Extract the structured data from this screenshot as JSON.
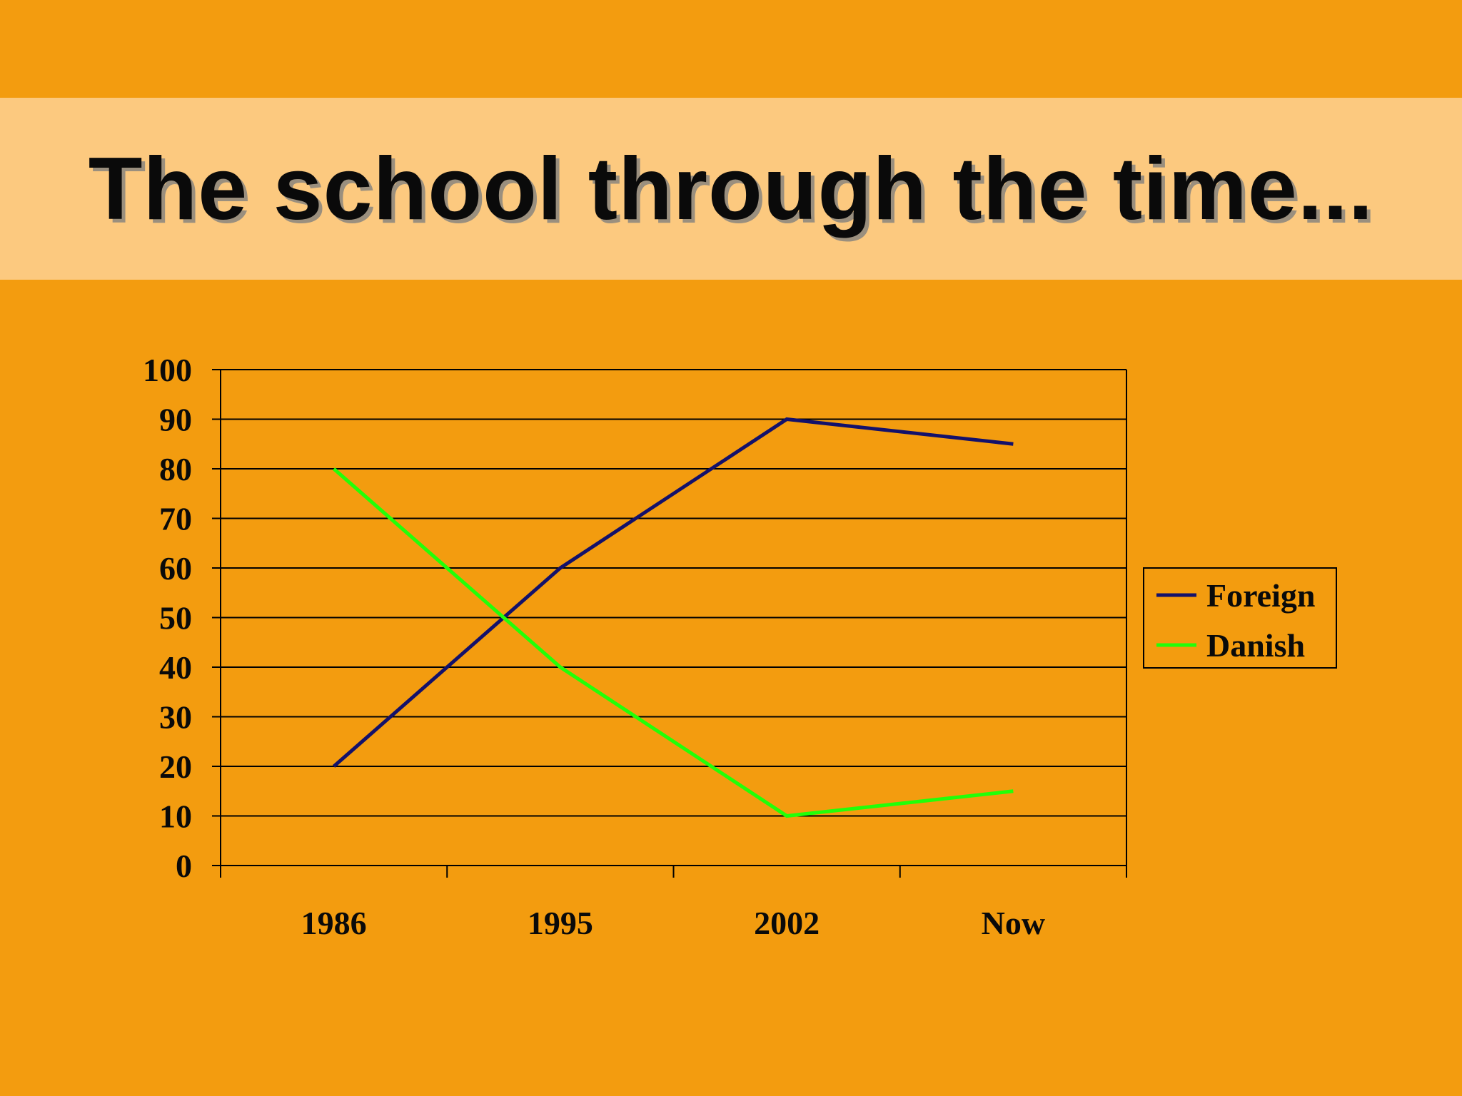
{
  "slide": {
    "title": "The school through the time...",
    "background_color": "#f39c0f",
    "title_band_color": "#fcc97f"
  },
  "chart_data": {
    "type": "line",
    "categories": [
      "1986",
      "1995",
      "2002",
      "Now"
    ],
    "series": [
      {
        "name": "Foreign",
        "values": [
          20,
          60,
          90,
          85
        ],
        "color": "#13116b"
      },
      {
        "name": "Danish",
        "values": [
          80,
          40,
          10,
          15
        ],
        "color": "#22ff08"
      }
    ],
    "title": "",
    "xlabel": "",
    "ylabel": "",
    "ylim": [
      0,
      100
    ],
    "yticks": [
      0,
      10,
      20,
      30,
      40,
      50,
      60,
      70,
      80,
      90,
      100
    ],
    "grid": true,
    "legend": "right"
  }
}
